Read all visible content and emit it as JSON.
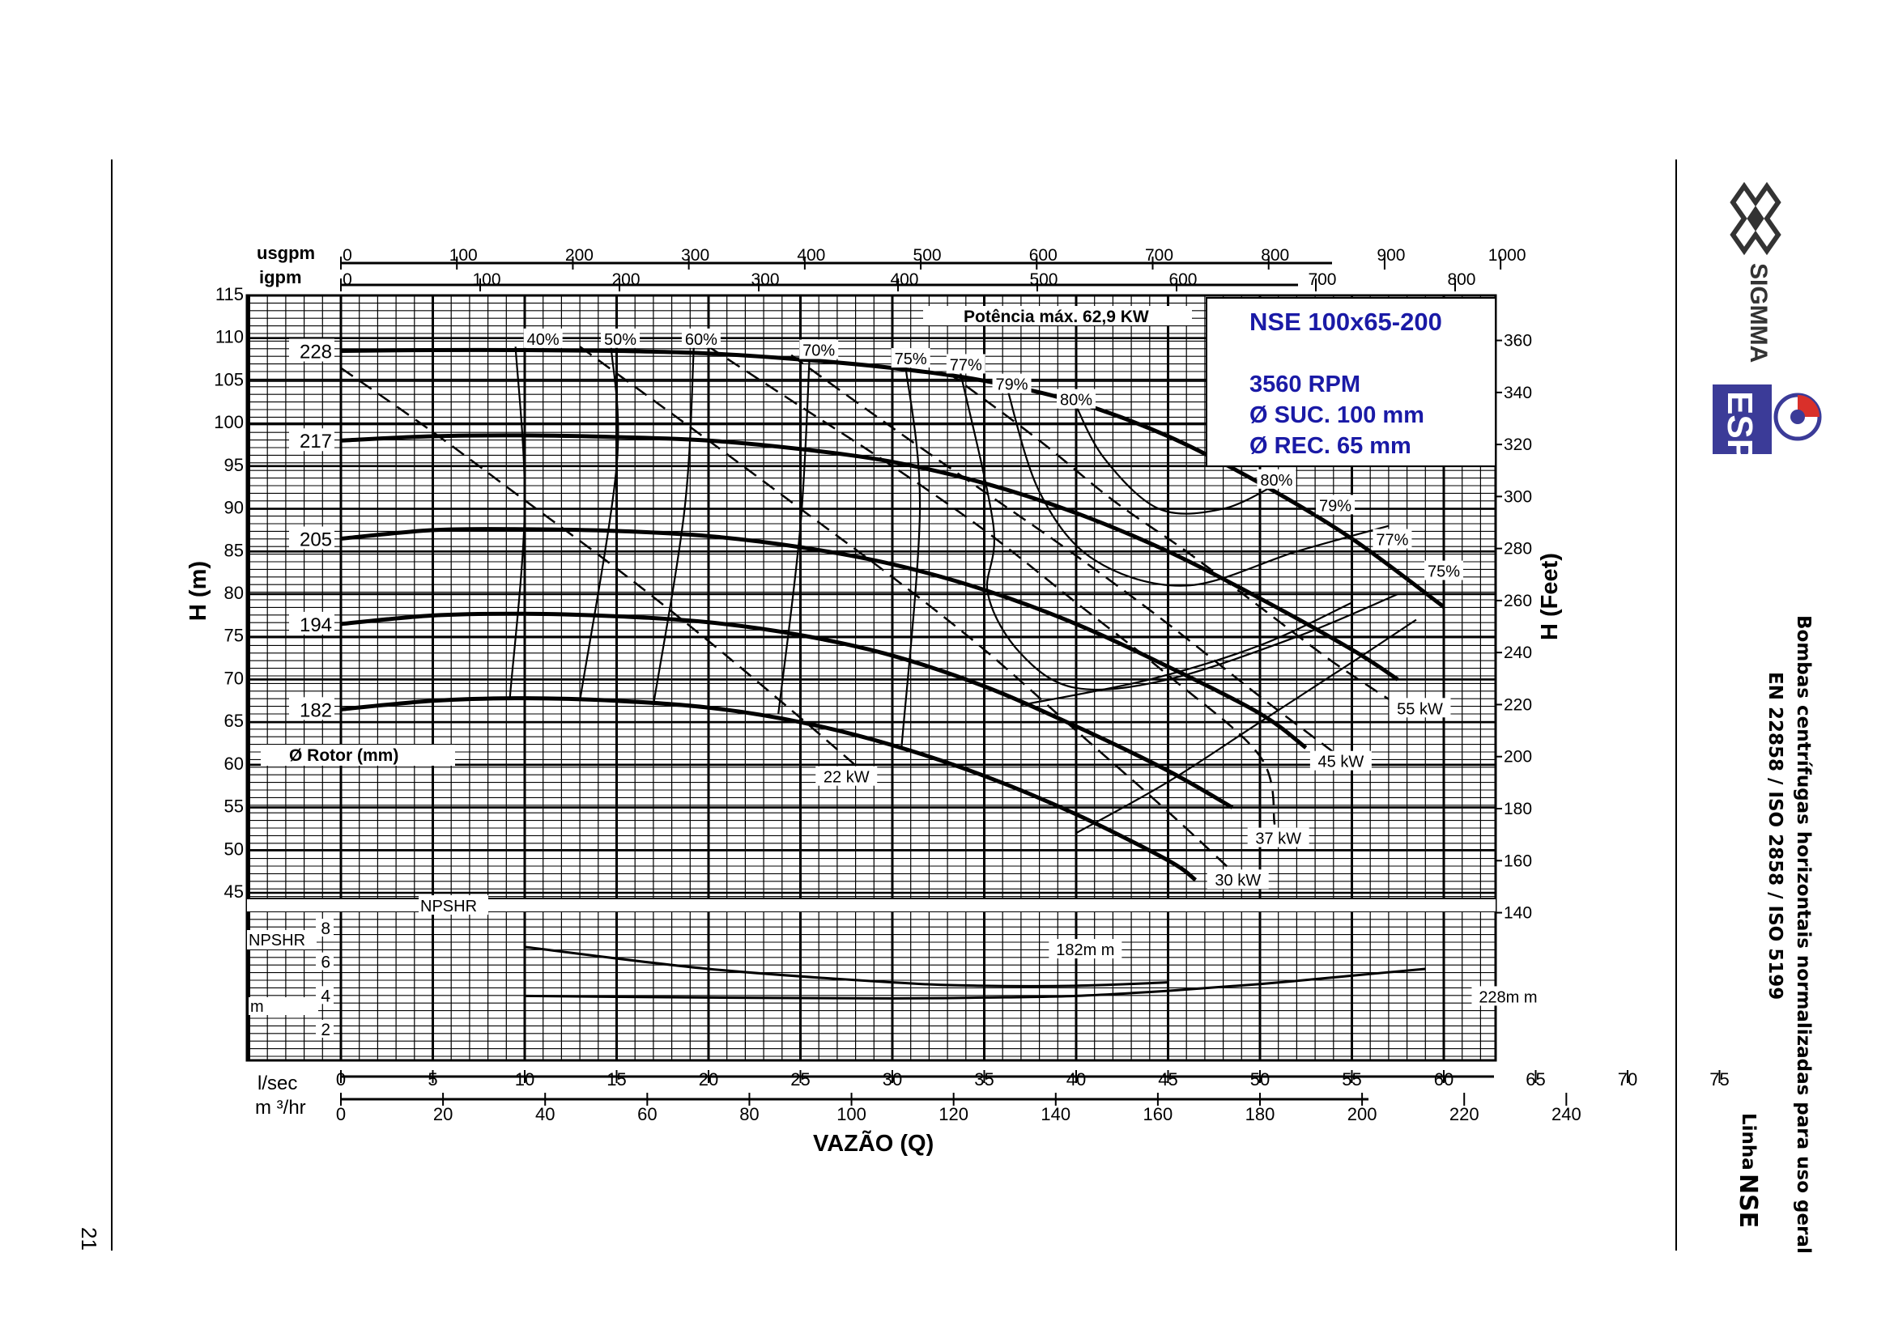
{
  "page": {
    "number": "21"
  },
  "brand": {
    "logo1_text": "SIGMMA",
    "logo2_text": "ESPA",
    "logo_color": "#3b3b98",
    "side_title": "Bombas centrífugas horizontais normalizadas para uso geral",
    "side_standards": "EN 22858 / ISO 2858 / ISO 5199",
    "side_line_prefix": "Linha",
    "side_line_name": "NSE"
  },
  "info_box": {
    "model": "NSE 100x65-200",
    "rpm": "3560 RPM",
    "suction": "Ø SUC. 100 mm",
    "discharge": "Ø REC. 65 mm",
    "text_color": "#1a1aa6"
  },
  "chart_data": {
    "type": "line",
    "title": "",
    "xlabel": "VAZÃO (Q)",
    "ylabel_left": "H (m)",
    "ylabel_right": "H (Feet)",
    "max_power_label": "Potência máx. 62,9 KW",
    "rotor_label": "Ø Rotor (mm)",
    "npshr_label": "NPSHR",
    "npshr_axis_label": "NPSHR",
    "npshr_unit_label": "m",
    "x_units": {
      "lsec_label": "l/sec",
      "m3hr_label": "m ³/hr",
      "usgpm_label": "usgpm",
      "igpm_label": "igpm"
    },
    "x_range_lsec": [
      0,
      75
    ],
    "y_range_m": [
      45,
      115
    ],
    "grid": true,
    "lsec_ticks": [
      "0",
      "5",
      "10",
      "15",
      "20",
      "25",
      "30",
      "35",
      "40",
      "45",
      "50",
      "55",
      "60",
      "65",
      "70",
      "75"
    ],
    "m3hr_ticks": [
      "0",
      "20",
      "40",
      "60",
      "80",
      "100",
      "120",
      "140",
      "160",
      "180",
      "200",
      "220",
      "240"
    ],
    "usgpm_ticks": [
      "0",
      "100",
      "200",
      "300",
      "400",
      "500",
      "600",
      "700",
      "800",
      "900",
      "1000"
    ],
    "igpm_ticks": [
      "0",
      "100",
      "200",
      "300",
      "400",
      "500",
      "600",
      "700",
      "800"
    ],
    "y_ticks_m": [
      "115",
      "110",
      "105",
      "100",
      "95",
      "90",
      "85",
      "80",
      "75",
      "70",
      "65",
      "60",
      "55",
      "50",
      "45"
    ],
    "feet_ticks": [
      "360",
      "340",
      "320",
      "300",
      "280",
      "260",
      "240",
      "220",
      "200",
      "180",
      "160",
      "140"
    ],
    "npshr_ticks": [
      "8",
      "6",
      "4",
      "2"
    ],
    "series": [
      {
        "name": "228",
        "x": [
          0,
          5,
          10,
          15,
          20,
          25,
          30,
          35,
          40,
          45,
          50,
          55,
          60
        ],
        "y": [
          108.5,
          108.6,
          108.6,
          108.5,
          108.2,
          107.5,
          106.5,
          105,
          102.5,
          98.5,
          93,
          86.5,
          78.5
        ]
      },
      {
        "name": "217",
        "x": [
          0,
          5,
          10,
          15,
          20,
          25,
          30,
          35,
          40,
          45,
          50,
          55,
          57.5
        ],
        "y": [
          98,
          98.5,
          98.6,
          98.4,
          98,
          97,
          95.5,
          93,
          89.5,
          85,
          79.5,
          73.5,
          70
        ]
      },
      {
        "name": "205",
        "x": [
          0,
          5,
          10,
          15,
          20,
          25,
          30,
          35,
          40,
          45,
          50,
          52.5
        ],
        "y": [
          86.5,
          87.5,
          87.6,
          87.4,
          86.8,
          85.5,
          83.5,
          80.5,
          76.5,
          71.5,
          66,
          62
        ]
      },
      {
        "name": "194",
        "x": [
          0,
          5,
          10,
          15,
          20,
          25,
          30,
          35,
          40,
          45,
          48.5
        ],
        "y": [
          76.5,
          77.5,
          77.7,
          77.4,
          76.7,
          75.2,
          72.8,
          69.2,
          64.5,
          59.3,
          55
        ]
      },
      {
        "name": "182",
        "x": [
          0,
          5,
          10,
          15,
          20,
          25,
          30,
          35,
          40,
          45,
          46.5
        ],
        "y": [
          66.5,
          67.5,
          67.8,
          67.5,
          66.7,
          65,
          62.3,
          58.7,
          54.2,
          48.8,
          46.5
        ]
      }
    ],
    "efficiency_labels": [
      {
        "label": "40%",
        "x": 11,
        "y": 109.8
      },
      {
        "label": "50%",
        "x": 15.2,
        "y": 109.8
      },
      {
        "label": "60%",
        "x": 19.6,
        "y": 109.8
      },
      {
        "label": "70%",
        "x": 26,
        "y": 108.5
      },
      {
        "label": "75%",
        "x": 31,
        "y": 107.5
      },
      {
        "label": "77%",
        "x": 34,
        "y": 106.8
      },
      {
        "label": "79%",
        "x": 36.5,
        "y": 104.5
      },
      {
        "label": "80%",
        "x": 40,
        "y": 102.7
      },
      {
        "label": "80%",
        "x": 50.9,
        "y": 93.3
      },
      {
        "label": "79%",
        "x": 54.1,
        "y": 90.3
      },
      {
        "label": "77%",
        "x": 57.2,
        "y": 86.3
      },
      {
        "label": "75%",
        "x": 60,
        "y": 82.6
      }
    ],
    "power_labels": [
      {
        "label": "22 kW",
        "x": 27.5,
        "y": 58.5
      },
      {
        "label": "30 kW",
        "x": 48.8,
        "y": 46.4
      },
      {
        "label": "37 kW",
        "x": 51,
        "y": 51.3
      },
      {
        "label": "45 kW",
        "x": 54.4,
        "y": 60.3
      },
      {
        "label": "55 kW",
        "x": 58.7,
        "y": 66.5
      }
    ],
    "npshr_series": [
      {
        "name": "182m m",
        "x": [
          10,
          20,
          30,
          35,
          40,
          45
        ],
        "y": [
          6.9,
          5.6,
          4.8,
          4.6,
          4.6,
          4.8
        ]
      },
      {
        "name": "228m m",
        "x": [
          10,
          20,
          30,
          35,
          40,
          45,
          50,
          55,
          59
        ],
        "y": [
          4.0,
          3.9,
          3.85,
          3.9,
          4.0,
          4.3,
          4.7,
          5.2,
          5.6
        ]
      }
    ]
  }
}
